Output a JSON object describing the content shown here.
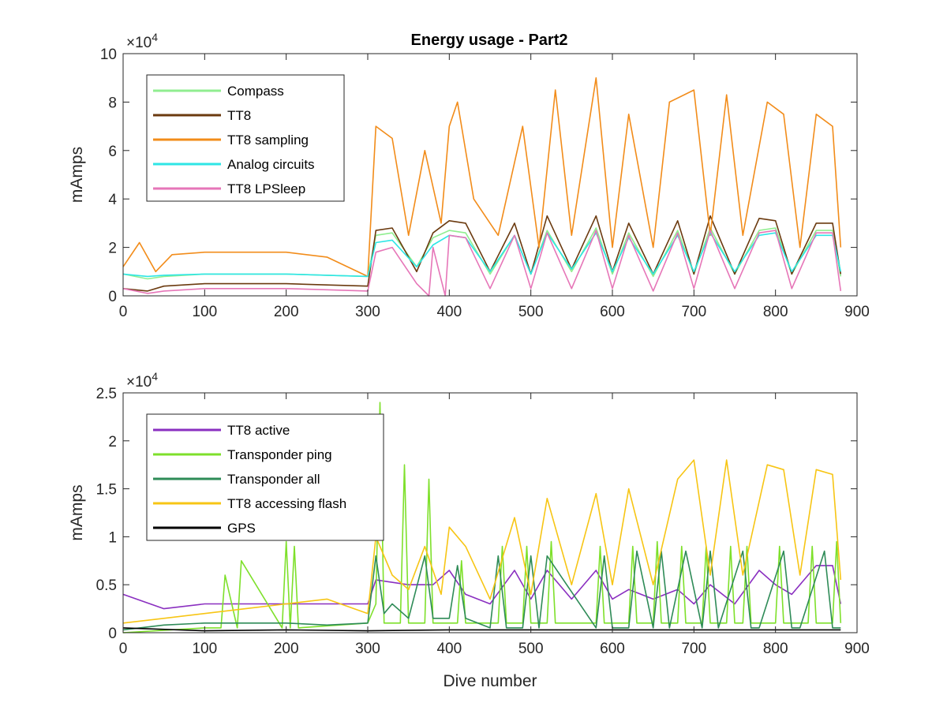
{
  "figure": {
    "title": "Energy usage - Part2"
  },
  "chart_data": [
    {
      "type": "line",
      "title": "Energy usage - Part2",
      "xlabel": "",
      "ylabel": "mAmps",
      "exponent_base": "10",
      "exponent_power": "4",
      "xlim": [
        0,
        900
      ],
      "ylim": [
        0,
        100000
      ],
      "xticks": [
        0,
        100,
        200,
        300,
        400,
        500,
        600,
        700,
        800,
        900
      ],
      "yticks": [
        0,
        20000,
        40000,
        60000,
        80000,
        100000
      ],
      "ytick_labels": [
        "0",
        "2",
        "4",
        "6",
        "8",
        "10"
      ],
      "legend_position": "top-left",
      "series": [
        {
          "name": "Compass",
          "color": "#90ee90",
          "x": [
            0,
            30,
            50,
            100,
            150,
            200,
            250,
            300,
            310,
            330,
            360,
            380,
            400,
            420,
            450,
            480,
            500,
            520,
            550,
            580,
            600,
            620,
            650,
            680,
            700,
            720,
            750,
            780,
            800,
            820,
            850,
            870,
            880
          ],
          "y": [
            9000,
            7000,
            8000,
            9000,
            9000,
            9000,
            8500,
            8000,
            25000,
            26000,
            12000,
            24000,
            27000,
            26000,
            9000,
            25000,
            9000,
            27000,
            10000,
            28000,
            9000,
            26000,
            8000,
            27000,
            9000,
            28000,
            9000,
            27000,
            28000,
            9000,
            27000,
            27000,
            8000
          ]
        },
        {
          "name": "TT8",
          "color": "#6b3a0f",
          "x": [
            0,
            30,
            50,
            100,
            150,
            200,
            250,
            300,
            310,
            330,
            360,
            380,
            400,
            420,
            450,
            480,
            500,
            520,
            550,
            580,
            600,
            620,
            650,
            680,
            700,
            720,
            750,
            780,
            800,
            820,
            850,
            870,
            880
          ],
          "y": [
            3000,
            2000,
            4000,
            5000,
            5000,
            5000,
            4500,
            4000,
            27000,
            28000,
            10000,
            26000,
            31000,
            30000,
            10000,
            30000,
            9000,
            33000,
            11000,
            33000,
            10000,
            30000,
            9000,
            31000,
            9000,
            33000,
            9000,
            32000,
            31000,
            9000,
            30000,
            30000,
            9000
          ]
        },
        {
          "name": "TT8 sampling",
          "color": "#f28c1a",
          "x": [
            0,
            20,
            40,
            60,
            100,
            150,
            200,
            250,
            300,
            310,
            330,
            350,
            370,
            390,
            400,
            410,
            430,
            460,
            490,
            510,
            530,
            550,
            580,
            600,
            620,
            650,
            670,
            700,
            720,
            740,
            760,
            790,
            810,
            830,
            850,
            870,
            880
          ],
          "y": [
            12000,
            22000,
            10000,
            17000,
            18000,
            18000,
            18000,
            16000,
            8000,
            70000,
            65000,
            25000,
            60000,
            30000,
            70000,
            80000,
            40000,
            25000,
            70000,
            20000,
            85000,
            25000,
            90000,
            20000,
            75000,
            20000,
            80000,
            85000,
            25000,
            83000,
            25000,
            80000,
            75000,
            20000,
            75000,
            70000,
            20000
          ]
        },
        {
          "name": "Analog circuits",
          "color": "#2ee6e6",
          "x": [
            0,
            30,
            50,
            100,
            150,
            200,
            250,
            300,
            310,
            330,
            360,
            380,
            400,
            420,
            450,
            480,
            500,
            520,
            550,
            580,
            600,
            620,
            650,
            680,
            700,
            720,
            750,
            780,
            800,
            820,
            850,
            870,
            880
          ],
          "y": [
            9000,
            8000,
            8500,
            9000,
            9000,
            9000,
            8500,
            8000,
            22000,
            23000,
            12000,
            21000,
            25000,
            24000,
            10000,
            25000,
            9000,
            26000,
            11000,
            26000,
            10000,
            24000,
            9000,
            25000,
            10000,
            26000,
            10000,
            25000,
            26000,
            10000,
            25000,
            25000,
            10000
          ]
        },
        {
          "name": "TT8 LPSleep",
          "color": "#e676b8",
          "x": [
            0,
            30,
            50,
            100,
            150,
            200,
            250,
            300,
            310,
            330,
            360,
            375,
            380,
            395,
            400,
            420,
            450,
            480,
            500,
            520,
            550,
            580,
            600,
            620,
            650,
            680,
            700,
            720,
            750,
            780,
            800,
            820,
            850,
            870,
            880
          ],
          "y": [
            3000,
            1000,
            2000,
            3000,
            3000,
            3000,
            2500,
            2000,
            18000,
            20000,
            5000,
            0,
            20000,
            0,
            25000,
            24000,
            3000,
            25000,
            3000,
            26000,
            3000,
            27000,
            3000,
            25000,
            2000,
            26000,
            3000,
            27000,
            3000,
            26000,
            27000,
            3000,
            26000,
            26000,
            2000
          ]
        }
      ]
    },
    {
      "type": "line",
      "title": "",
      "xlabel": "Dive number",
      "ylabel": "mAmps",
      "exponent_base": "10",
      "exponent_power": "4",
      "xlim": [
        0,
        900
      ],
      "ylim": [
        0,
        25000
      ],
      "xticks": [
        0,
        100,
        200,
        300,
        400,
        500,
        600,
        700,
        800,
        900
      ],
      "yticks": [
        0,
        5000,
        10000,
        15000,
        20000,
        25000
      ],
      "ytick_labels": [
        "0",
        "0.5",
        "1",
        "1.5",
        "2",
        "2.5"
      ],
      "legend_position": "top-left",
      "series": [
        {
          "name": "TT8 active",
          "color": "#8a2fc0",
          "x": [
            0,
            50,
            100,
            150,
            200,
            250,
            300,
            310,
            350,
            380,
            400,
            420,
            450,
            480,
            500,
            520,
            550,
            580,
            600,
            620,
            650,
            680,
            700,
            720,
            750,
            780,
            800,
            820,
            850,
            870,
            880
          ],
          "y": [
            4000,
            2500,
            3000,
            3000,
            3000,
            3000,
            3000,
            5500,
            5000,
            5000,
            6500,
            4000,
            3000,
            6500,
            3500,
            6500,
            3500,
            6500,
            3500,
            4500,
            3500,
            4500,
            3000,
            5000,
            3000,
            6500,
            5000,
            4000,
            7000,
            7000,
            3000
          ]
        },
        {
          "name": "Transponder ping",
          "color": "#7ee02b",
          "x": [
            0,
            100,
            120,
            125,
            140,
            145,
            195,
            200,
            205,
            210,
            215,
            300,
            310,
            315,
            320,
            340,
            345,
            350,
            370,
            375,
            380,
            400,
            410,
            415,
            420,
            460,
            465,
            470,
            490,
            495,
            500,
            520,
            525,
            530,
            580,
            585,
            590,
            620,
            625,
            630,
            650,
            655,
            660,
            680,
            685,
            690,
            700,
            710,
            715,
            720,
            740,
            745,
            750,
            760,
            765,
            770,
            800,
            805,
            810,
            840,
            845,
            850,
            870,
            875,
            880
          ],
          "y": [
            0,
            500,
            500,
            6000,
            500,
            7500,
            500,
            9500,
            500,
            9000,
            500,
            1000,
            3000,
            24000,
            1000,
            1000,
            17500,
            1000,
            1000,
            16000,
            1000,
            1000,
            1000,
            7500,
            1000,
            1000,
            9000,
            1000,
            1000,
            9000,
            1000,
            1000,
            9500,
            1000,
            1000,
            9000,
            1000,
            1000,
            9000,
            1000,
            1000,
            9500,
            1000,
            1000,
            9000,
            1000,
            1000,
            1000,
            9000,
            1000,
            1000,
            9000,
            1000,
            1000,
            9000,
            1000,
            1000,
            9000,
            1000,
            1000,
            9000,
            1000,
            1000,
            9500,
            1000
          ]
        },
        {
          "name": "Transponder all",
          "color": "#2e8b57",
          "x": [
            0,
            50,
            100,
            150,
            200,
            250,
            300,
            310,
            320,
            330,
            350,
            370,
            380,
            400,
            410,
            420,
            450,
            460,
            470,
            490,
            500,
            510,
            520,
            580,
            590,
            600,
            620,
            630,
            650,
            660,
            670,
            690,
            710,
            720,
            730,
            760,
            770,
            780,
            810,
            820,
            830,
            860,
            870,
            880
          ],
          "y": [
            300,
            800,
            1000,
            1000,
            1000,
            800,
            1000,
            8000,
            2000,
            3000,
            1500,
            8000,
            1500,
            1500,
            7000,
            1500,
            500,
            8000,
            500,
            500,
            8000,
            500,
            8000,
            500,
            8000,
            500,
            500,
            8500,
            500,
            8500,
            500,
            8500,
            500,
            8500,
            500,
            8500,
            500,
            500,
            8500,
            500,
            500,
            8500,
            500,
            500
          ]
        },
        {
          "name": "TT8 accessing flash",
          "color": "#f7c514",
          "x": [
            0,
            50,
            100,
            150,
            200,
            250,
            300,
            310,
            330,
            350,
            370,
            390,
            400,
            420,
            450,
            480,
            500,
            520,
            550,
            580,
            600,
            620,
            650,
            680,
            700,
            720,
            740,
            760,
            790,
            810,
            830,
            850,
            870,
            880
          ],
          "y": [
            1000,
            1500,
            2000,
            2500,
            3000,
            3500,
            2000,
            10000,
            6000,
            4500,
            9000,
            4000,
            11000,
            9000,
            3500,
            12000,
            4000,
            14000,
            5000,
            14500,
            5000,
            15000,
            5000,
            16000,
            18000,
            6000,
            18000,
            6000,
            17500,
            17000,
            6000,
            17000,
            16500,
            5500
          ]
        },
        {
          "name": "GPS",
          "color": "#000000",
          "x": [
            0,
            100,
            200,
            300,
            400,
            500,
            600,
            700,
            800,
            880
          ],
          "y": [
            500,
            200,
            300,
            200,
            300,
            300,
            300,
            300,
            300,
            300
          ]
        }
      ]
    }
  ]
}
